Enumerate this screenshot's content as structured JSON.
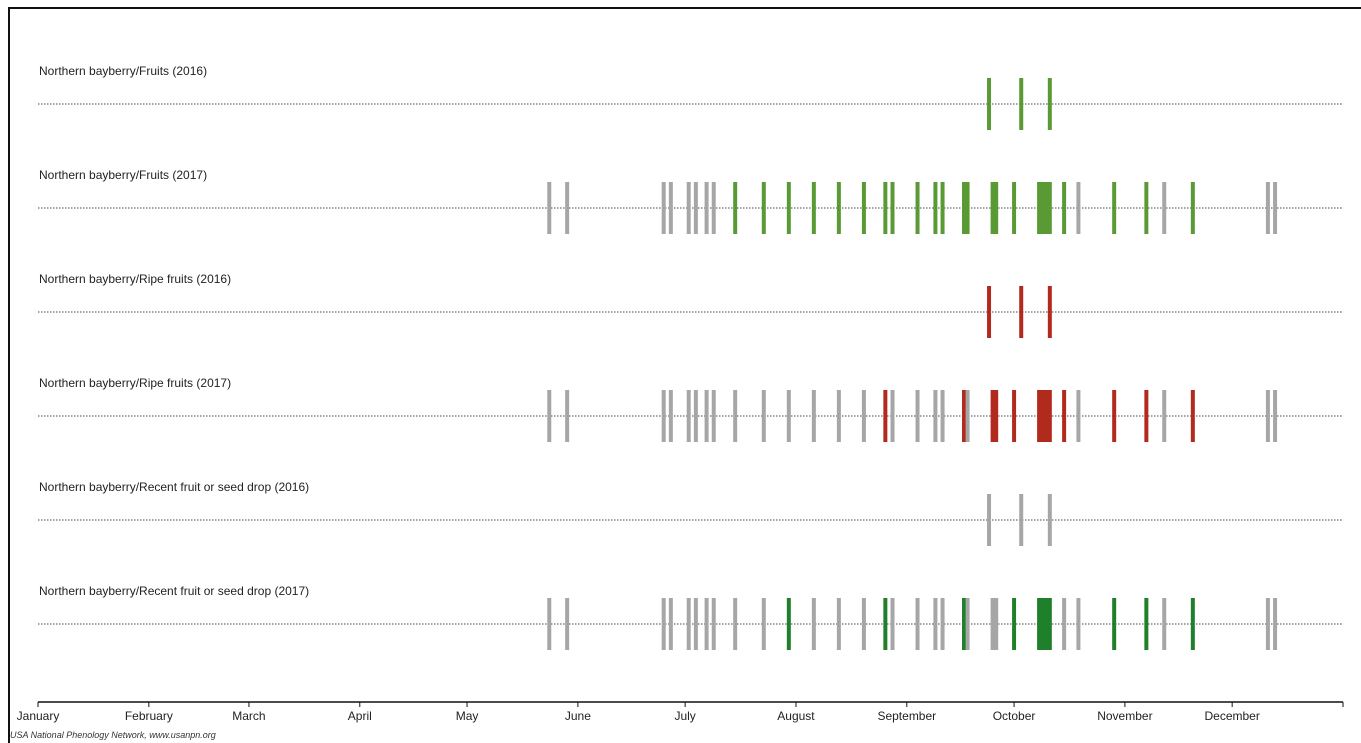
{
  "chart_data": {
    "type": "timeline",
    "xaxis": {
      "tick_labels": [
        "January",
        "February",
        "March",
        "April",
        "May",
        "June",
        "July",
        "August",
        "September",
        "October",
        "November",
        "December"
      ]
    },
    "xlim_days": [
      0,
      365
    ],
    "colors": {
      "no": "#a6a6a6",
      "fruits_yes": "#5a9a34",
      "ripe_yes": "#b22a1d",
      "drop_yes": "#1f7f2a"
    },
    "series": [
      {
        "name": "Northern bayberry/Fruits (2016)",
        "color_key": "fruits_yes",
        "observations": [
          {
            "day": 266,
            "status": "yes"
          },
          {
            "day": 275,
            "status": "yes"
          },
          {
            "day": 283,
            "status": "yes"
          }
        ]
      },
      {
        "name": "Northern bayberry/Fruits (2017)",
        "color_key": "fruits_yes",
        "observations": [
          {
            "day": 143,
            "status": "no"
          },
          {
            "day": 148,
            "status": "no"
          },
          {
            "day": 175,
            "status": "no"
          },
          {
            "day": 177,
            "status": "no"
          },
          {
            "day": 182,
            "status": "no"
          },
          {
            "day": 184,
            "status": "no"
          },
          {
            "day": 187,
            "status": "no"
          },
          {
            "day": 189,
            "status": "no"
          },
          {
            "day": 195,
            "status": "yes"
          },
          {
            "day": 203,
            "status": "yes"
          },
          {
            "day": 210,
            "status": "yes"
          },
          {
            "day": 217,
            "status": "yes"
          },
          {
            "day": 224,
            "status": "yes"
          },
          {
            "day": 231,
            "status": "yes"
          },
          {
            "day": 237,
            "status": "yes"
          },
          {
            "day": 239,
            "status": "yes"
          },
          {
            "day": 246,
            "status": "yes"
          },
          {
            "day": 251,
            "status": "yes"
          },
          {
            "day": 253,
            "status": "yes"
          },
          {
            "day": 259,
            "status": "yes"
          },
          {
            "day": 260,
            "status": "yes"
          },
          {
            "day": 267,
            "status": "yes"
          },
          {
            "day": 268,
            "status": "yes"
          },
          {
            "day": 273,
            "status": "yes"
          },
          {
            "day": 280,
            "status": "yes"
          },
          {
            "day": 281,
            "status": "yes"
          },
          {
            "day": 282,
            "status": "yes"
          },
          {
            "day": 283,
            "status": "yes"
          },
          {
            "day": 287,
            "status": "yes"
          },
          {
            "day": 291,
            "status": "no"
          },
          {
            "day": 301,
            "status": "yes"
          },
          {
            "day": 310,
            "status": "yes"
          },
          {
            "day": 315,
            "status": "no"
          },
          {
            "day": 323,
            "status": "yes"
          },
          {
            "day": 344,
            "status": "no"
          },
          {
            "day": 346,
            "status": "no"
          }
        ]
      },
      {
        "name": "Northern bayberry/Ripe fruits (2016)",
        "color_key": "ripe_yes",
        "observations": [
          {
            "day": 266,
            "status": "yes"
          },
          {
            "day": 275,
            "status": "yes"
          },
          {
            "day": 283,
            "status": "yes"
          }
        ]
      },
      {
        "name": "Northern bayberry/Ripe fruits (2017)",
        "color_key": "ripe_yes",
        "observations": [
          {
            "day": 143,
            "status": "no"
          },
          {
            "day": 148,
            "status": "no"
          },
          {
            "day": 175,
            "status": "no"
          },
          {
            "day": 177,
            "status": "no"
          },
          {
            "day": 182,
            "status": "no"
          },
          {
            "day": 184,
            "status": "no"
          },
          {
            "day": 187,
            "status": "no"
          },
          {
            "day": 189,
            "status": "no"
          },
          {
            "day": 195,
            "status": "no"
          },
          {
            "day": 203,
            "status": "no"
          },
          {
            "day": 210,
            "status": "no"
          },
          {
            "day": 217,
            "status": "no"
          },
          {
            "day": 224,
            "status": "no"
          },
          {
            "day": 231,
            "status": "no"
          },
          {
            "day": 237,
            "status": "yes"
          },
          {
            "day": 239,
            "status": "no"
          },
          {
            "day": 246,
            "status": "no"
          },
          {
            "day": 251,
            "status": "no"
          },
          {
            "day": 253,
            "status": "no"
          },
          {
            "day": 259,
            "status": "yes"
          },
          {
            "day": 260,
            "status": "no"
          },
          {
            "day": 267,
            "status": "yes"
          },
          {
            "day": 268,
            "status": "yes"
          },
          {
            "day": 273,
            "status": "yes"
          },
          {
            "day": 280,
            "status": "yes"
          },
          {
            "day": 281,
            "status": "yes"
          },
          {
            "day": 282,
            "status": "yes"
          },
          {
            "day": 283,
            "status": "yes"
          },
          {
            "day": 287,
            "status": "yes"
          },
          {
            "day": 291,
            "status": "no"
          },
          {
            "day": 301,
            "status": "yes"
          },
          {
            "day": 310,
            "status": "yes"
          },
          {
            "day": 315,
            "status": "no"
          },
          {
            "day": 323,
            "status": "yes"
          },
          {
            "day": 344,
            "status": "no"
          },
          {
            "day": 346,
            "status": "no"
          }
        ]
      },
      {
        "name": "Northern bayberry/Recent fruit or seed drop (2016)",
        "color_key": "drop_yes",
        "observations": [
          {
            "day": 266,
            "status": "no"
          },
          {
            "day": 275,
            "status": "no"
          },
          {
            "day": 283,
            "status": "no"
          }
        ]
      },
      {
        "name": "Northern bayberry/Recent fruit or seed drop (2017)",
        "color_key": "drop_yes",
        "observations": [
          {
            "day": 143,
            "status": "no"
          },
          {
            "day": 148,
            "status": "no"
          },
          {
            "day": 175,
            "status": "no"
          },
          {
            "day": 177,
            "status": "no"
          },
          {
            "day": 182,
            "status": "no"
          },
          {
            "day": 184,
            "status": "no"
          },
          {
            "day": 187,
            "status": "no"
          },
          {
            "day": 189,
            "status": "no"
          },
          {
            "day": 195,
            "status": "no"
          },
          {
            "day": 203,
            "status": "no"
          },
          {
            "day": 210,
            "status": "yes"
          },
          {
            "day": 217,
            "status": "no"
          },
          {
            "day": 224,
            "status": "no"
          },
          {
            "day": 231,
            "status": "no"
          },
          {
            "day": 237,
            "status": "yes"
          },
          {
            "day": 239,
            "status": "no"
          },
          {
            "day": 246,
            "status": "no"
          },
          {
            "day": 251,
            "status": "no"
          },
          {
            "day": 253,
            "status": "no"
          },
          {
            "day": 259,
            "status": "yes"
          },
          {
            "day": 260,
            "status": "no"
          },
          {
            "day": 267,
            "status": "no"
          },
          {
            "day": 268,
            "status": "no"
          },
          {
            "day": 273,
            "status": "yes"
          },
          {
            "day": 280,
            "status": "yes"
          },
          {
            "day": 281,
            "status": "yes"
          },
          {
            "day": 282,
            "status": "yes"
          },
          {
            "day": 283,
            "status": "yes"
          },
          {
            "day": 287,
            "status": "no"
          },
          {
            "day": 291,
            "status": "no"
          },
          {
            "day": 301,
            "status": "yes"
          },
          {
            "day": 310,
            "status": "yes"
          },
          {
            "day": 315,
            "status": "no"
          },
          {
            "day": 323,
            "status": "yes"
          },
          {
            "day": 344,
            "status": "no"
          },
          {
            "day": 346,
            "status": "no"
          }
        ]
      }
    ]
  },
  "footer": {
    "credit": "USA National Phenology Network, www.usanpn.org"
  }
}
